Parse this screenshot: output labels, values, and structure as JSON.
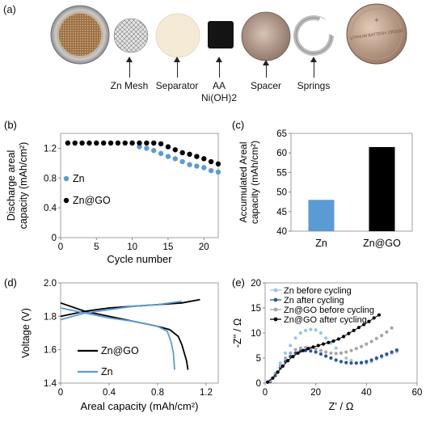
{
  "panel_a": {
    "label": "(a)",
    "components": [
      {
        "name": "coin-case",
        "label": ""
      },
      {
        "name": "zn-mesh",
        "label": "Zn Mesh"
      },
      {
        "name": "separator",
        "label": "Separator"
      },
      {
        "name": "aa-nioh2",
        "label": "AA\nNi(OH)2"
      },
      {
        "name": "spacer",
        "label": "Spacer"
      },
      {
        "name": "springs",
        "label": "Springs"
      },
      {
        "name": "coin-cell",
        "label": ""
      }
    ],
    "battery_text": "LITHIUM BATTERY CR2032"
  },
  "chart_data": [
    {
      "id": "b",
      "label": "(b)",
      "type": "scatter",
      "xlabel": "Cycle number",
      "ylabel": "Discharge areal capacity (mAh/cm²)",
      "xlim": [
        0,
        22
      ],
      "ylim": [
        0.0,
        1.4
      ],
      "xticks": [
        0,
        5,
        10,
        15,
        20
      ],
      "yticks": [
        0,
        0.4,
        0.8,
        1.2
      ],
      "yticklabels": [
        "0",
        "0.4",
        "0.8",
        "1.2"
      ],
      "legend": "middle-left",
      "series": [
        {
          "name": "Zn",
          "color": "#5b9bd5",
          "x": [
            11,
            12,
            13,
            14,
            15,
            16,
            17,
            18,
            19,
            20,
            21,
            22
          ],
          "y": [
            1.22,
            1.2,
            1.17,
            1.13,
            1.09,
            1.06,
            1.02,
            0.98,
            0.96,
            0.94,
            0.9,
            0.88
          ]
        },
        {
          "name": "Zn@GO",
          "color": "#000000",
          "x": [
            1,
            2,
            3,
            4,
            5,
            6,
            7,
            8,
            9,
            10,
            11,
            12,
            13,
            14,
            15,
            16,
            17,
            18,
            19,
            20,
            21,
            22
          ],
          "y": [
            1.27,
            1.27,
            1.27,
            1.27,
            1.27,
            1.27,
            1.27,
            1.27,
            1.27,
            1.27,
            1.27,
            1.27,
            1.27,
            1.26,
            1.22,
            1.18,
            1.14,
            1.12,
            1.09,
            1.06,
            1.02,
            0.99
          ]
        }
      ]
    },
    {
      "id": "c",
      "label": "(c)",
      "type": "bar",
      "ylabel": "Accumulated Areal capacity (mAh/cm²)",
      "categories": [
        "Zn",
        "Zn@GO"
      ],
      "values": [
        48,
        61.5
      ],
      "colors": [
        "#5b9bd5",
        "#000000"
      ],
      "ylim": [
        40,
        65
      ],
      "yticks": [
        40,
        45,
        50,
        55,
        60,
        65
      ]
    },
    {
      "id": "d",
      "label": "(d)",
      "type": "line",
      "xlabel": "Areal capacity (mAh/cm²)",
      "ylabel": "Voltage (V)",
      "xlim": [
        0,
        1.3
      ],
      "ylim": [
        1.4,
        2.0
      ],
      "xticks": [
        0,
        0.4,
        0.8,
        1.2
      ],
      "xticklabels": [
        "0",
        "0.4",
        "0.8",
        "1.2"
      ],
      "yticks": [
        1.4,
        1.6,
        1.8,
        2.0
      ],
      "yticklabels": [
        "1.4",
        "1.6",
        "1.8",
        "2.0"
      ],
      "legend": "lower-center",
      "series": [
        {
          "name": "Zn@GO",
          "color": "#000000",
          "width": 1.8,
          "segments": [
            {
              "x": [
                0,
                0.2,
                0.4,
                0.6,
                0.8,
                0.9,
                0.97,
                1.0,
                1.02,
                1.04,
                1.05
              ],
              "y": [
                1.88,
                1.83,
                1.8,
                1.77,
                1.74,
                1.72,
                1.68,
                1.63,
                1.58,
                1.53,
                1.48
              ]
            },
            {
              "x": [
                0,
                0.2,
                0.4,
                0.6,
                0.8,
                1.0,
                1.15
              ],
              "y": [
                1.8,
                1.83,
                1.85,
                1.86,
                1.87,
                1.88,
                1.9
              ]
            }
          ]
        },
        {
          "name": "Zn",
          "color": "#5b9bd5",
          "width": 1.8,
          "segments": [
            {
              "x": [
                0,
                0.2,
                0.4,
                0.6,
                0.8,
                0.88,
                0.91,
                0.93,
                0.94
              ],
              "y": [
                1.85,
                1.82,
                1.79,
                1.77,
                1.74,
                1.71,
                1.65,
                1.58,
                1.48
              ]
            },
            {
              "x": [
                0,
                0.2,
                0.4,
                0.6,
                0.8,
                1.0
              ],
              "y": [
                1.78,
                1.82,
                1.84,
                1.86,
                1.87,
                1.89
              ]
            }
          ]
        }
      ]
    },
    {
      "id": "e",
      "label": "(e)",
      "type": "scatter",
      "xlabel": "Z' / Ω",
      "ylabel": "-Z'' / Ω",
      "xlim": [
        0,
        60
      ],
      "ylim": [
        0,
        20
      ],
      "xticks": [
        0,
        20,
        40,
        60
      ],
      "yticks": [
        0,
        5,
        10,
        15,
        20
      ],
      "legend": "top-left",
      "series": [
        {
          "name": "Zn before cycling",
          "color": "#9dc3e6",
          "marker": "circle",
          "x": [
            2,
            4,
            6,
            8,
            10,
            12,
            14,
            16,
            18,
            20,
            22,
            24,
            26,
            28,
            30,
            32,
            34,
            36,
            38,
            40,
            42,
            44,
            46,
            48,
            50,
            52
          ],
          "y": [
            0.5,
            2,
            4,
            6,
            7.5,
            9,
            10,
            10.5,
            10.7,
            10.6,
            10,
            9,
            8,
            7,
            6,
            5,
            4.5,
            4,
            4,
            4,
            4.3,
            4.8,
            5.2,
            5.6,
            6,
            6.3
          ]
        },
        {
          "name": "Zn after cycling",
          "color": "#2e5597",
          "marker": "circle",
          "x": [
            2,
            4,
            6,
            8,
            10,
            12,
            14,
            16,
            18,
            20,
            22,
            24,
            26,
            28,
            30,
            32,
            34,
            36,
            38,
            40,
            42,
            44,
            46,
            48,
            50,
            52
          ],
          "y": [
            0.3,
            1.5,
            3,
            4.3,
            5.3,
            6,
            6.4,
            6.5,
            6.4,
            6.2,
            5.8,
            5.4,
            5,
            4.6,
            4.3,
            4.1,
            4,
            4,
            4.1,
            4.3,
            4.6,
            5,
            5.4,
            5.8,
            6.2,
            6.6
          ]
        },
        {
          "name": "Zn@GO before cycling",
          "color": "#a6a6a6",
          "marker": "circle",
          "x": [
            2,
            4,
            6,
            8,
            10,
            12,
            14,
            16,
            18,
            20,
            22,
            24,
            26,
            28,
            30,
            32,
            34,
            36,
            38,
            40,
            42,
            44,
            46,
            48,
            50
          ],
          "y": [
            0.5,
            1.8,
            3.5,
            5,
            6,
            6.7,
            7,
            7.1,
            7,
            6.8,
            6.5,
            6.2,
            6,
            5.9,
            6,
            6.2,
            6.5,
            6.9,
            7.3,
            7.8,
            8.3,
            8.9,
            9.5,
            10.2,
            11
          ]
        },
        {
          "name": "Zn@GO after cycling",
          "color": "#000000",
          "marker": "circle",
          "connect": true,
          "x": [
            1,
            3,
            5,
            7,
            9,
            11,
            13,
            15,
            17,
            19,
            21,
            23,
            25,
            27,
            29,
            31,
            33,
            35,
            37,
            39,
            41,
            43,
            45
          ],
          "y": [
            0.2,
            1,
            2.2,
            3.4,
            4.5,
            5.3,
            6,
            6.5,
            6.9,
            7.2,
            7.5,
            7.8,
            8.1,
            8.4,
            8.8,
            9.3,
            9.9,
            10.5,
            11.1,
            11.7,
            12.3,
            13,
            13.6
          ]
        }
      ]
    }
  ]
}
